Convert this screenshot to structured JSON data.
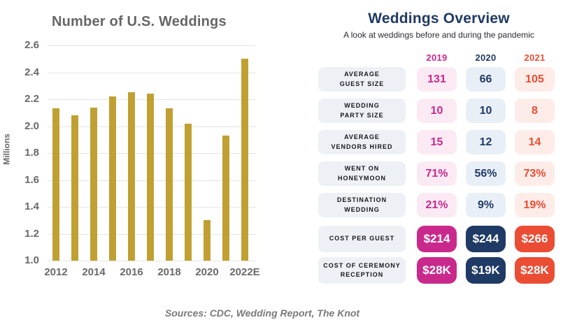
{
  "chart_data": {
    "type": "bar",
    "title": "Number of U.S. Weddings",
    "ylabel": "Millions",
    "categories": [
      "2012",
      "2013",
      "2014",
      "2015",
      "2016",
      "2017",
      "2018",
      "2019",
      "2020",
      "2021",
      "2022E"
    ],
    "values": [
      2.13,
      2.08,
      2.14,
      2.22,
      2.25,
      2.24,
      2.13,
      2.02,
      1.3,
      1.93,
      2.5
    ],
    "x_tick_labels": [
      "2012",
      "2014",
      "2016",
      "2018",
      "2020",
      "2022E"
    ],
    "y_ticks": [
      1.0,
      1.2,
      1.4,
      1.6,
      1.8,
      2.0,
      2.2,
      2.4,
      2.6
    ],
    "ylim": [
      1.0,
      2.6
    ],
    "grid": true,
    "legend": "none",
    "bar_color": "#c0a033"
  },
  "overview": {
    "title": "Weddings Overview",
    "subtitle": "A look at weddings before and during the pandemic",
    "label_bg": "#edf1f6",
    "columns": [
      {
        "year": "2019",
        "color": "#c9298c",
        "light_bg": "#fbeaf4"
      },
      {
        "year": "2020",
        "color": "#1f3a64",
        "light_bg": "#e9eff7"
      },
      {
        "year": "2021",
        "color": "#ea4d34",
        "light_bg": "#fdece8"
      }
    ],
    "rows": [
      {
        "label_lines": [
          "AVERAGE",
          "GUEST SIZE"
        ],
        "values": [
          "131",
          "66",
          "105"
        ],
        "style": "light"
      },
      {
        "label_lines": [
          "WEDDING",
          "PARTY SIZE"
        ],
        "values": [
          "10",
          "10",
          "8"
        ],
        "style": "light"
      },
      {
        "label_lines": [
          "AVERAGE",
          "VENDORS HIRED"
        ],
        "values": [
          "15",
          "12",
          "14"
        ],
        "style": "light"
      },
      {
        "label_lines": [
          "WENT ON",
          "HONEYMOON"
        ],
        "values": [
          "71%",
          "56%",
          "73%"
        ],
        "style": "light"
      },
      {
        "label_lines": [
          "DESTINATION",
          "WEDDING"
        ],
        "values": [
          "21%",
          "9%",
          "19%"
        ],
        "style": "light"
      },
      {
        "label_lines": [
          "COST PER GUEST"
        ],
        "values": [
          "$214",
          "$244",
          "$266"
        ],
        "style": "solid"
      },
      {
        "label_lines": [
          "COST OF CEREMONY",
          "RECEPTION"
        ],
        "values": [
          "$28K",
          "$19K",
          "$28K"
        ],
        "style": "solid"
      }
    ]
  },
  "footer": {
    "sources": "Sources: CDC, Wedding Report, The Knot"
  }
}
